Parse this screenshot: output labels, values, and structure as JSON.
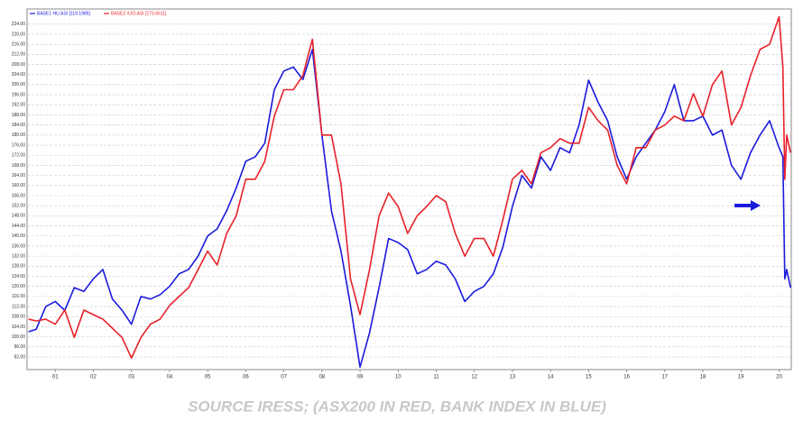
{
  "chart_data": {
    "type": "line",
    "caption": "SOURCE IRESS; (ASX200 IN RED, BANK INDEX IN BLUE)",
    "x": [
      0.3,
      0.5,
      0.75,
      1,
      1.25,
      1.5,
      1.75,
      2,
      2.25,
      2.5,
      2.75,
      3,
      3.25,
      3.5,
      3.75,
      4,
      4.25,
      4.5,
      4.75,
      5,
      5.25,
      5.5,
      5.75,
      6,
      6.25,
      6.5,
      6.75,
      7,
      7.25,
      7.5,
      7.75,
      8,
      8.25,
      8.5,
      8.75,
      9,
      9.25,
      9.5,
      9.75,
      10,
      10.25,
      10.5,
      10.75,
      11,
      11.25,
      11.5,
      11.75,
      12,
      12.25,
      12.5,
      12.75,
      13,
      13.25,
      13.5,
      13.75,
      14,
      14.25,
      14.5,
      14.75,
      15,
      15.25,
      15.5,
      15.75,
      16,
      16.25,
      16.5,
      16.75,
      17,
      17.25,
      17.5,
      17.75,
      18,
      18.25,
      18.5,
      18.75,
      19,
      19.25,
      19.5,
      19.75,
      20,
      20.1,
      20.15,
      20.2,
      20.3
    ],
    "series": [
      {
        "name": "BASE1 HU.ASI [119.1989]",
        "color": "#1a1adc",
        "values": [
          102,
          103,
          112,
          114,
          110.5,
          119.5,
          118,
          123,
          126.7,
          115,
          110.6,
          105,
          116,
          115,
          116.7,
          120,
          125,
          126.7,
          132,
          140,
          142.8,
          150,
          159,
          169.6,
          171.4,
          176.8,
          198,
          205.4,
          207,
          202,
          214,
          180,
          150,
          134,
          112.4,
          88,
          101.6,
          119.5,
          139,
          137.4,
          134.6,
          125,
          126.7,
          130,
          128.5,
          123,
          114,
          118,
          120,
          125,
          135.6,
          151.7,
          164,
          159,
          171.4,
          166,
          175,
          173,
          184,
          201.8,
          193,
          185.7,
          171.4,
          162.5,
          171.4,
          176.8,
          182,
          189.3,
          200,
          185.7,
          185.7,
          187.5,
          180,
          182,
          168,
          162.5,
          173,
          180,
          185.7,
          175,
          171.4,
          123,
          126.7,
          119.5
        ]
      },
      {
        "name": "BASE2 XJO.ASI [173.6611]",
        "color": "#e8202a",
        "values": [
          107,
          106.3,
          107,
          105,
          110.6,
          99.8,
          110.6,
          108.8,
          107,
          103.4,
          99.8,
          91.6,
          99.8,
          105,
          107,
          112.4,
          116,
          119.5,
          126.7,
          134,
          128.5,
          141,
          148,
          162.5,
          162.5,
          169.6,
          187.5,
          198,
          198,
          203.6,
          218,
          180,
          180,
          160.7,
          123,
          108.8,
          126.7,
          148,
          157,
          151.7,
          141,
          148,
          151.7,
          156,
          153.6,
          141,
          132,
          139,
          139,
          132,
          146.4,
          162.5,
          166,
          160.7,
          173,
          175,
          178.6,
          176.8,
          176.8,
          191,
          185.7,
          182,
          168,
          160.7,
          175,
          175,
          182,
          184,
          187.5,
          185.7,
          196.4,
          187.5,
          200,
          205.4,
          184,
          191,
          203.6,
          214,
          216,
          226.9,
          207,
          162.5,
          180,
          173
        ]
      }
    ],
    "xlim": [
      0.26,
      20.32
    ],
    "xticks": [
      {
        "value": 1,
        "label": "01"
      },
      {
        "value": 2,
        "label": "02"
      },
      {
        "value": 3,
        "label": "03"
      },
      {
        "value": 4,
        "label": "04"
      },
      {
        "value": 5,
        "label": "05"
      },
      {
        "value": 6,
        "label": "06"
      },
      {
        "value": 7,
        "label": "07"
      },
      {
        "value": 8,
        "label": "08"
      },
      {
        "value": 9,
        "label": "09"
      },
      10,
      11,
      12,
      13,
      14,
      15,
      16,
      17,
      18,
      19,
      20
    ],
    "ylim": [
      87,
      230
    ],
    "yticks": [
      {
        "value": 92,
        "label": "92.00"
      },
      {
        "value": 96,
        "label": "96.00"
      },
      {
        "value": 100,
        "label": "100.00"
      },
      {
        "value": 104,
        "label": "104.00"
      },
      {
        "value": 108,
        "label": "108.00"
      },
      {
        "value": 112,
        "label": "112.00"
      },
      {
        "value": 116,
        "label": "116.00"
      },
      {
        "value": 120,
        "label": "120.00"
      },
      {
        "value": 124,
        "label": "124.00"
      },
      {
        "value": 128,
        "label": "128.00"
      },
      {
        "value": 132,
        "label": "132.00"
      },
      {
        "value": 136,
        "label": "136.00"
      },
      {
        "value": 140,
        "label": "140.00"
      },
      {
        "value": 144,
        "label": "144.00"
      },
      {
        "value": 148,
        "label": "148.00"
      },
      {
        "value": 152,
        "label": "152.00"
      },
      {
        "value": 156,
        "label": "156.00"
      },
      {
        "value": 160,
        "label": "160.00"
      },
      {
        "value": 164,
        "label": "164.00"
      },
      {
        "value": 168,
        "label": "168.00"
      },
      {
        "value": 172,
        "label": "172.00"
      },
      {
        "value": 176,
        "label": "176.00"
      },
      {
        "value": 180,
        "label": "180.00"
      },
      {
        "value": 184,
        "label": "184.00"
      },
      {
        "value": 188,
        "label": "188.00"
      },
      {
        "value": 192,
        "label": "192.00"
      },
      {
        "value": 196,
        "label": "196.00"
      },
      {
        "value": 200,
        "label": "200.00"
      },
      {
        "value": 204,
        "label": "204.00"
      },
      {
        "value": 208,
        "label": "208.00"
      },
      {
        "value": 212,
        "label": "212.00"
      },
      {
        "value": 216,
        "label": "216.00"
      },
      {
        "value": 220,
        "label": "220.00"
      },
      {
        "value": 224,
        "label": "224.00"
      }
    ],
    "grid": true
  }
}
